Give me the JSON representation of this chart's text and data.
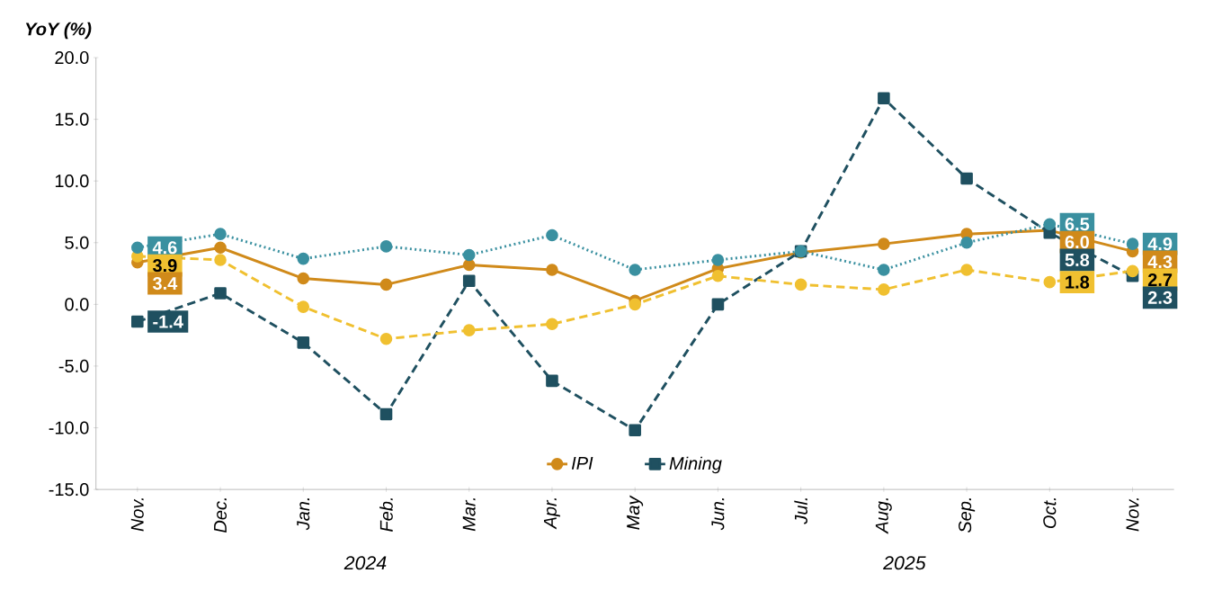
{
  "chart_data": {
    "type": "line",
    "ylabel": "YoY (%)",
    "categories": [
      "Nov.",
      "Dec.",
      "Jan.",
      "Feb.",
      "Mar.",
      "Apr.",
      "May",
      "Jun.",
      "Jul.",
      "Aug.",
      "Sep.",
      "Oct.",
      "Nov."
    ],
    "series": [
      {
        "name": "IPI",
        "color": "#d08a1a",
        "marker": "circle",
        "line_style": "solid",
        "values": [
          3.4,
          4.6,
          2.1,
          1.6,
          3.2,
          2.8,
          0.3,
          2.9,
          4.2,
          4.9,
          5.7,
          6.0,
          4.3
        ],
        "value_labels": [
          "3.4",
          null,
          null,
          null,
          null,
          null,
          null,
          null,
          null,
          null,
          null,
          "6.0",
          "4.3"
        ]
      },
      {
        "name": "Mining",
        "color": "#1f5060",
        "marker": "square",
        "line_style": "dashed",
        "values": [
          -1.4,
          0.9,
          -3.1,
          -8.9,
          1.9,
          -6.2,
          -10.2,
          0.0,
          4.3,
          16.7,
          10.2,
          5.8,
          2.3
        ],
        "value_labels": [
          "-1.4",
          null,
          null,
          null,
          null,
          null,
          null,
          null,
          null,
          null,
          null,
          "5.8",
          "2.3"
        ]
      },
      {
        "color": "#f0c030",
        "marker": "circle",
        "line_style": "dashed",
        "values": [
          3.9,
          3.6,
          -0.2,
          -2.8,
          -2.1,
          -1.6,
          0.0,
          2.3,
          1.6,
          1.2,
          2.8,
          1.8,
          2.7
        ],
        "value_labels": [
          "3.9",
          null,
          null,
          null,
          null,
          null,
          null,
          null,
          null,
          null,
          null,
          "1.8",
          "2.7"
        ]
      },
      {
        "color": "#3a90a0",
        "marker": "circle",
        "line_style": "dotted",
        "values": [
          4.6,
          5.7,
          3.7,
          4.7,
          4.0,
          5.6,
          2.8,
          3.6,
          4.3,
          2.8,
          5.0,
          6.5,
          4.9
        ],
        "value_labels": [
          "4.6",
          null,
          null,
          null,
          null,
          null,
          null,
          null,
          null,
          null,
          null,
          "6.5",
          "4.9"
        ]
      }
    ],
    "ylim": [
      -15,
      20
    ],
    "yticks": [
      {
        "value": -15,
        "label": "-15.0"
      },
      {
        "value": -10,
        "label": "-10.0"
      },
      {
        "value": -5,
        "label": "-5.0"
      },
      {
        "value": 0,
        "label": "0.0"
      },
      {
        "value": 5,
        "label": "5.0"
      },
      {
        "value": 10,
        "label": "10.0"
      },
      {
        "value": 15,
        "label": "15.0"
      },
      {
        "value": 20,
        "label": "20.0"
      }
    ],
    "legend": "bottom",
    "annotations": [
      "2024",
      "2025"
    ]
  }
}
